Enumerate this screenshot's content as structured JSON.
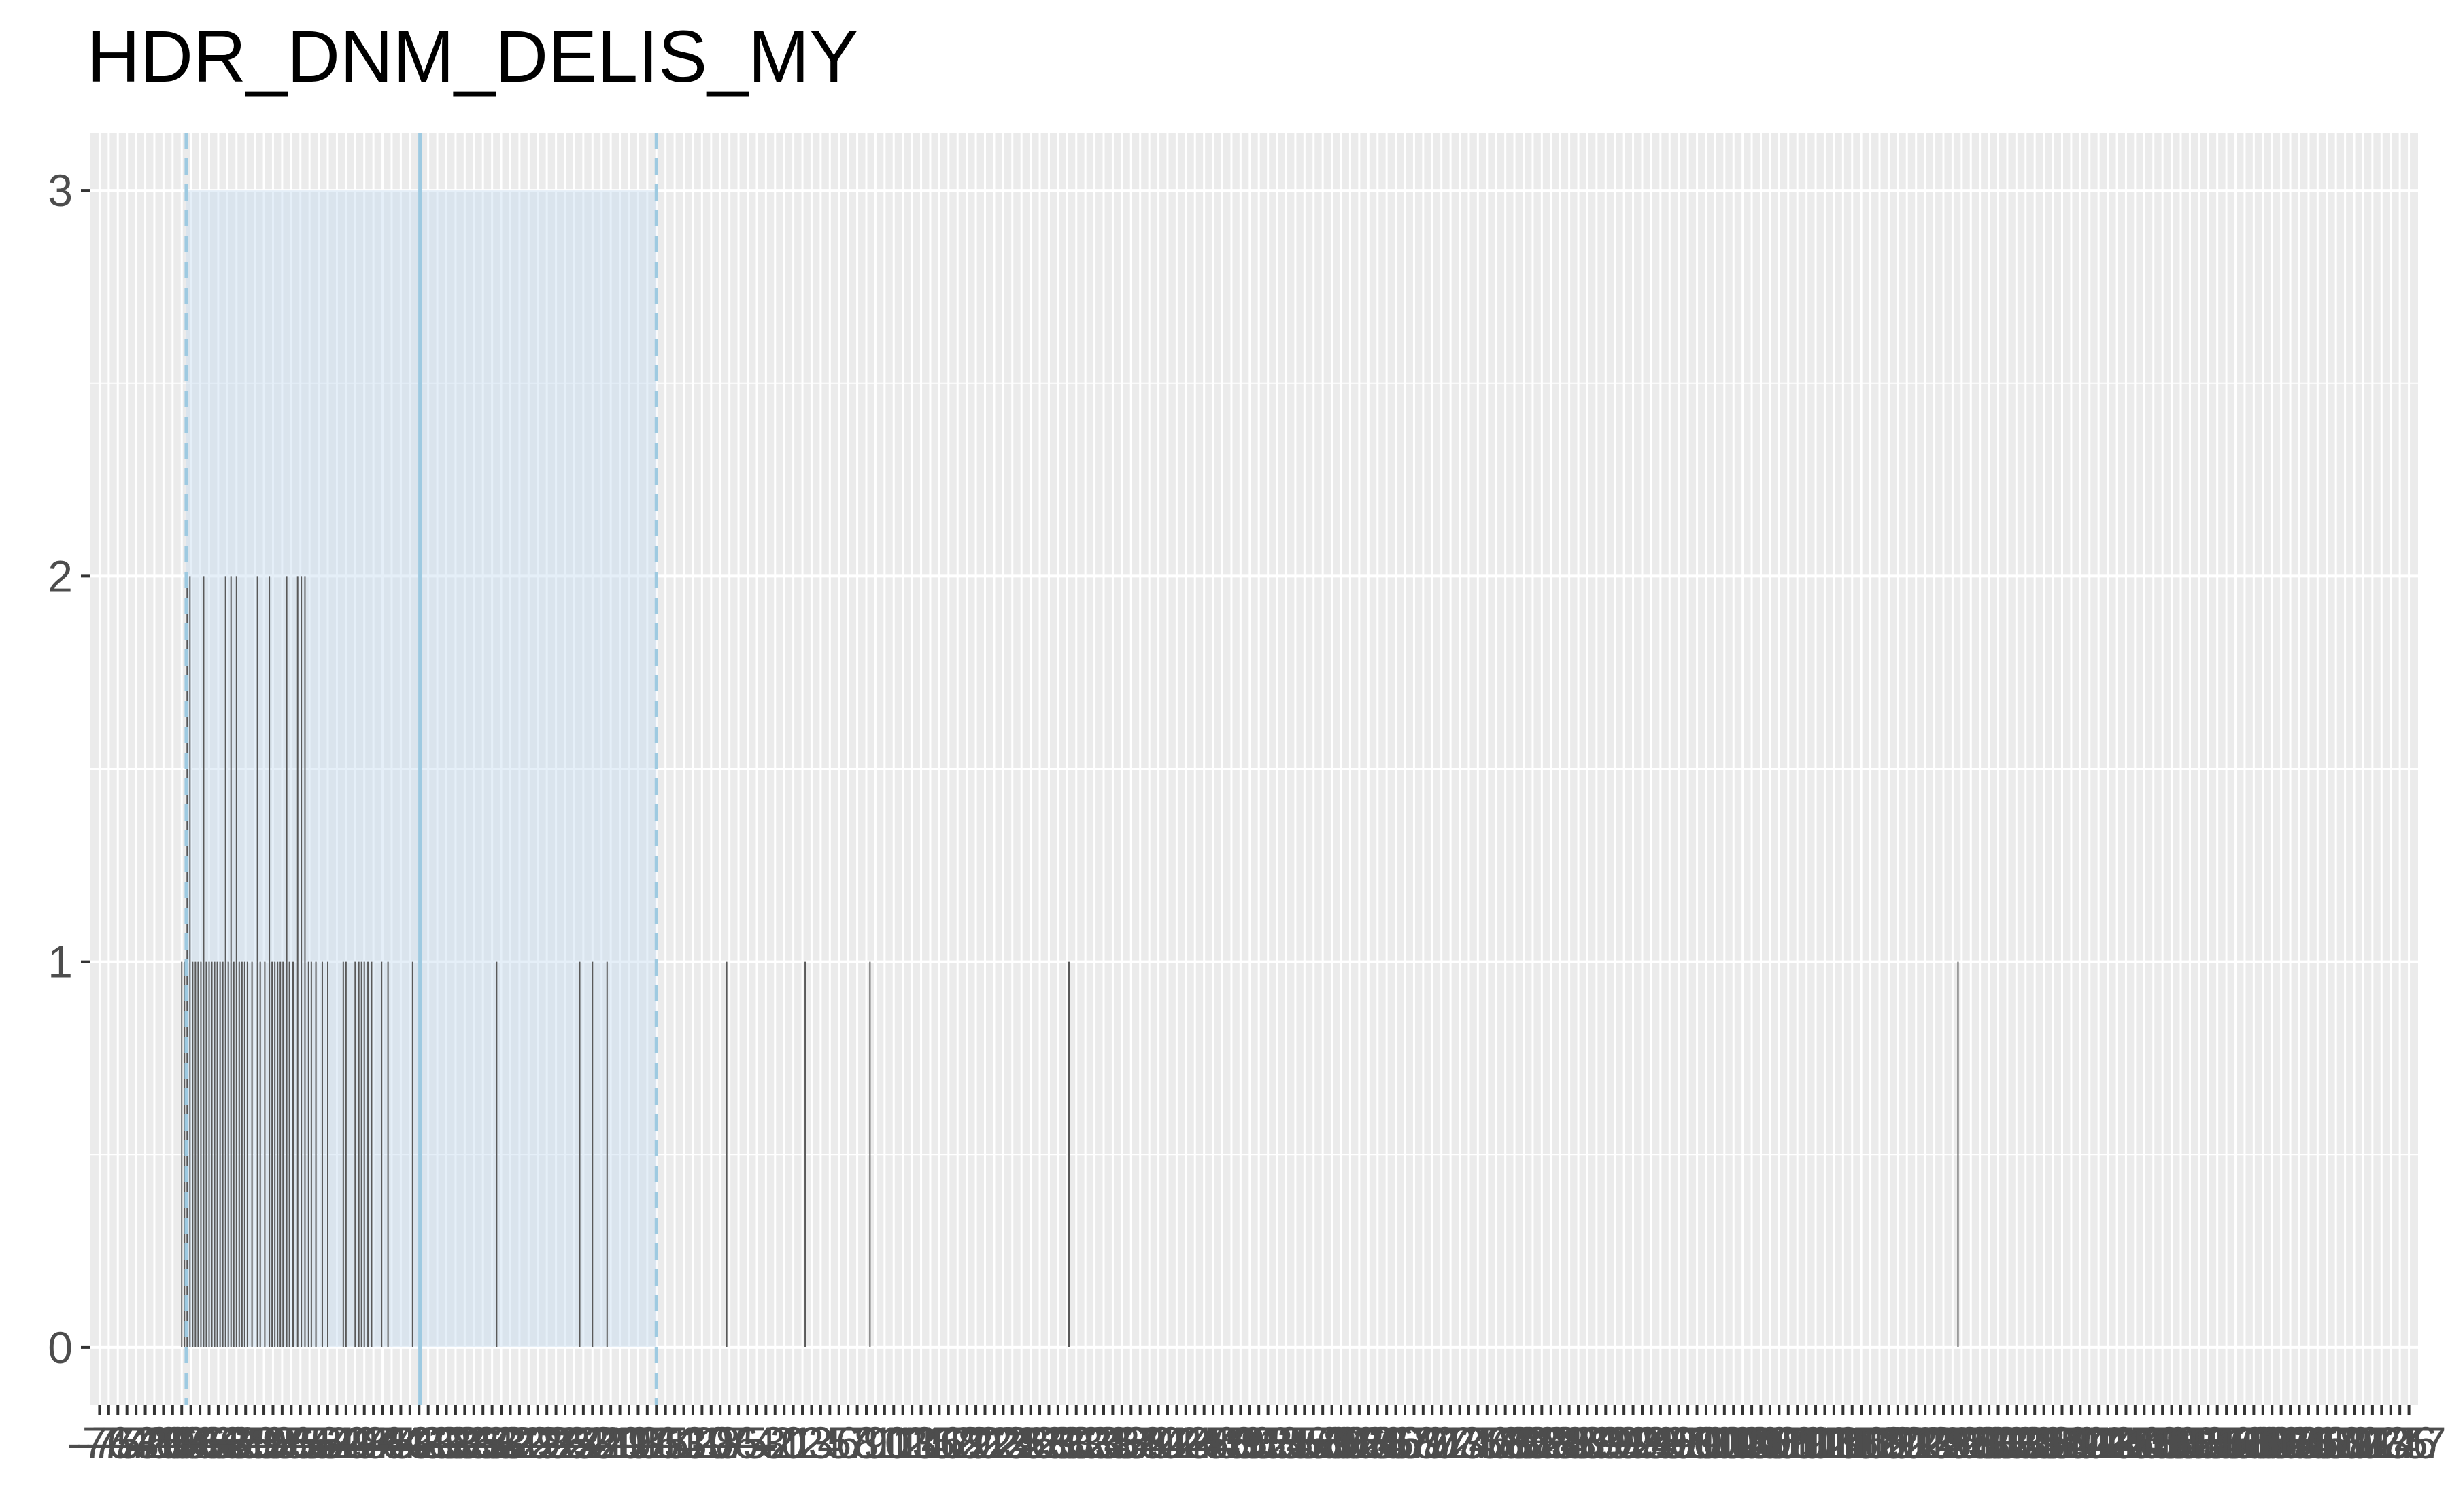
{
  "chart_data": {
    "type": "bar",
    "title": "HDR_DNM_DELIS_MY",
    "xlabel": "",
    "ylabel": "",
    "xlim": [
      -77,
      178
    ],
    "ylim": [
      0,
      3
    ],
    "y_ticks": [
      0,
      1,
      2,
      3
    ],
    "x_tick_labels": [
      "-76",
      "-75",
      "-74",
      "-73",
      "-72",
      "-71",
      "-70",
      "-69",
      "-68",
      "-67",
      "-66",
      "-65",
      "-64",
      "-63",
      "-62",
      "-61",
      "-60",
      "-59",
      "-58",
      "-57",
      "-56",
      "-55",
      "-54",
      "-53",
      "-52",
      "-51",
      "-50",
      "-49",
      "-48",
      "-47",
      "-46",
      "-45",
      "-44",
      "-43",
      "-42",
      "-41",
      "-40",
      "-39",
      "-38",
      "-37",
      "-36",
      "-35",
      "-34",
      "-33",
      "-32",
      "-31",
      "-30",
      "-29",
      "-28",
      "-27",
      "-26",
      "-25",
      "-24",
      "-23",
      "-22",
      "-21",
      "-20",
      "-19",
      "-18",
      "-17",
      "-16",
      "-15",
      "-14",
      "-13",
      "-12",
      "-11",
      "-10",
      "-9",
      "-8",
      "-7",
      "-6",
      "-5",
      "-4",
      "-3",
      "-2",
      "-1",
      "0",
      "1",
      "2",
      "3",
      "4",
      "5",
      "6",
      "7",
      "8",
      "9",
      "10",
      "11",
      "12",
      "13",
      "14",
      "15",
      "16",
      "17",
      "18",
      "19",
      "20",
      "21",
      "22",
      "23",
      "24",
      "25",
      "26",
      "27",
      "28",
      "29",
      "30",
      "31",
      "32",
      "33",
      "34",
      "35",
      "36",
      "37",
      "38",
      "39",
      "40",
      "41",
      "42",
      "43",
      "44",
      "45",
      "46",
      "47",
      "48",
      "49",
      "50",
      "51",
      "52",
      "53",
      "54",
      "55",
      "56",
      "57",
      "58",
      "59",
      "60",
      "61",
      "62",
      "63",
      "64",
      "65",
      "66",
      "67",
      "68",
      "69",
      "70",
      "71",
      "72",
      "73",
      "74",
      "75",
      "76",
      "77",
      "78",
      "79",
      "80",
      "81",
      "82",
      "83",
      "84",
      "85",
      "86",
      "87",
      "88",
      "89",
      "90",
      "91",
      "92",
      "93",
      "94",
      "95",
      "96",
      "97",
      "98",
      "99",
      "100",
      "101",
      "102",
      "103",
      "104",
      "105",
      "106",
      "107",
      "108",
      "109",
      "110",
      "111",
      "112",
      "113",
      "114",
      "115",
      "116",
      "117",
      "118",
      "119",
      "120",
      "121",
      "122",
      "123",
      "124",
      "125",
      "126",
      "127",
      "128",
      "129",
      "130",
      "131",
      "132",
      "133",
      "134",
      "135",
      "136",
      "137",
      "138",
      "139",
      "140",
      "141",
      "142",
      "143",
      "144",
      "145",
      "146",
      "147",
      "148",
      "149",
      "150",
      "151",
      "152",
      "153",
      "154",
      "155",
      "156",
      "157",
      "158",
      "159",
      "160",
      "161",
      "162",
      "163",
      "164",
      "165",
      "166",
      "167",
      "168",
      "169",
      "170",
      "171",
      "172",
      "173",
      "174",
      "175",
      "176",
      "177"
    ],
    "bars": [
      {
        "x": -67.0,
        "y": 1
      },
      {
        "x": -66.7,
        "y": 1
      },
      {
        "x": -66.4,
        "y": 2
      },
      {
        "x": -66.1,
        "y": 2
      },
      {
        "x": -65.8,
        "y": 1
      },
      {
        "x": -65.5,
        "y": 1
      },
      {
        "x": -65.2,
        "y": 1
      },
      {
        "x": -64.9,
        "y": 1
      },
      {
        "x": -64.6,
        "y": 2
      },
      {
        "x": -64.3,
        "y": 1
      },
      {
        "x": -64.0,
        "y": 1
      },
      {
        "x": -63.7,
        "y": 1
      },
      {
        "x": -63.4,
        "y": 1
      },
      {
        "x": -63.1,
        "y": 1
      },
      {
        "x": -62.8,
        "y": 1
      },
      {
        "x": -62.5,
        "y": 1
      },
      {
        "x": -62.2,
        "y": 2
      },
      {
        "x": -61.9,
        "y": 1
      },
      {
        "x": -61.6,
        "y": 2
      },
      {
        "x": -61.3,
        "y": 1
      },
      {
        "x": -61.0,
        "y": 2
      },
      {
        "x": -60.7,
        "y": 1
      },
      {
        "x": -60.4,
        "y": 1
      },
      {
        "x": -60.1,
        "y": 1
      },
      {
        "x": -59.8,
        "y": 1
      },
      {
        "x": -59.3,
        "y": 1
      },
      {
        "x": -58.7,
        "y": 2
      },
      {
        "x": -58.4,
        "y": 1
      },
      {
        "x": -57.9,
        "y": 1
      },
      {
        "x": -57.4,
        "y": 2
      },
      {
        "x": -57.1,
        "y": 1
      },
      {
        "x": -56.8,
        "y": 1
      },
      {
        "x": -56.5,
        "y": 1
      },
      {
        "x": -56.2,
        "y": 1
      },
      {
        "x": -55.9,
        "y": 1
      },
      {
        "x": -55.5,
        "y": 2
      },
      {
        "x": -55.2,
        "y": 1
      },
      {
        "x": -54.8,
        "y": 1
      },
      {
        "x": -54.3,
        "y": 2
      },
      {
        "x": -53.9,
        "y": 2
      },
      {
        "x": -53.5,
        "y": 2
      },
      {
        "x": -53.1,
        "y": 1
      },
      {
        "x": -52.8,
        "y": 1
      },
      {
        "x": -52.3,
        "y": 1
      },
      {
        "x": -51.6,
        "y": 1
      },
      {
        "x": -51.0,
        "y": 1
      },
      {
        "x": -49.3,
        "y": 1
      },
      {
        "x": -49.0,
        "y": 1
      },
      {
        "x": -48.0,
        "y": 1
      },
      {
        "x": -47.6,
        "y": 1
      },
      {
        "x": -47.3,
        "y": 1
      },
      {
        "x": -47.0,
        "y": 1
      },
      {
        "x": -46.6,
        "y": 1
      },
      {
        "x": -46.2,
        "y": 1
      },
      {
        "x": -45.1,
        "y": 1
      },
      {
        "x": -44.4,
        "y": 1
      },
      {
        "x": -41.7,
        "y": 1
      },
      {
        "x": -32.5,
        "y": 1
      },
      {
        "x": -23.4,
        "y": 1
      },
      {
        "x": -22.0,
        "y": 1
      },
      {
        "x": -20.4,
        "y": 1
      },
      {
        "x": -7.3,
        "y": 1
      },
      {
        "x": 1.3,
        "y": 1
      },
      {
        "x": 8.4,
        "y": 1
      },
      {
        "x": 30.2,
        "y": 1
      },
      {
        "x": 127.6,
        "y": 1
      }
    ],
    "shaded_region": {
      "x_start": -66.5,
      "x_end": -15.0,
      "color": "#c6dbef"
    },
    "reference_lines": [
      {
        "x": -66.5,
        "style": "dashed",
        "color": "#9ecae1"
      },
      {
        "x": -40.9,
        "style": "solid",
        "color": "#9ecae1"
      },
      {
        "x": -15.0,
        "style": "dashed",
        "color": "#9ecae1"
      }
    ],
    "bar_color": "#595959",
    "panel_background": "#ebebeb",
    "grid": true,
    "legend": "none"
  }
}
